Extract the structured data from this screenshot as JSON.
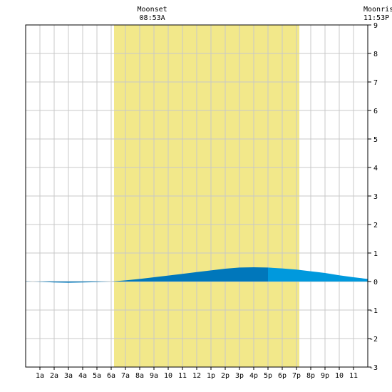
{
  "chart_data": {
    "type": "area",
    "title": "",
    "xlabel": "",
    "ylabel": "",
    "ylim": [
      -3,
      9
    ],
    "xlim": [
      0,
      24
    ],
    "grid": true,
    "y_ticks": [
      -3,
      -2,
      -1,
      0,
      1,
      2,
      3,
      4,
      5,
      6,
      7,
      8,
      9
    ],
    "x_tick_labels": [
      "1a",
      "2a",
      "3a",
      "4a",
      "5a",
      "6a",
      "7a",
      "8a",
      "9a",
      "10",
      "11",
      "12",
      "1p",
      "2p",
      "3p",
      "4p",
      "5p",
      "6p",
      "7p",
      "8p",
      "9p",
      "10",
      "11"
    ],
    "daylight": {
      "start_hour": 6.2,
      "end_hour": 19.2
    },
    "annotations": [
      {
        "label": "Moonset",
        "time": "08:53A",
        "hour": 8.88
      },
      {
        "label": "Moonrise",
        "time": "11:53P",
        "hour": 23.88
      }
    ],
    "series": [
      {
        "x": [
          0,
          1,
          2,
          3,
          4,
          5,
          6,
          7,
          8,
          9,
          10,
          11,
          12,
          13,
          14,
          15,
          16,
          17,
          18,
          19,
          20,
          21,
          22,
          23,
          24
        ],
        "values": [
          0.01,
          -0.01,
          -0.03,
          -0.04,
          -0.03,
          -0.02,
          0.0,
          0.04,
          0.09,
          0.15,
          0.21,
          0.27,
          0.33,
          0.39,
          0.45,
          0.49,
          0.5,
          0.49,
          0.46,
          0.42,
          0.36,
          0.3,
          0.22,
          0.15,
          0.09
        ]
      }
    ],
    "colors": {
      "daylight": "#f2e88a",
      "tide_dark": "#0077bb",
      "tide_light": "#0099dd",
      "grid": "#c8c8c8",
      "axis": "#000000"
    },
    "fill_split_hour": 17.0
  }
}
